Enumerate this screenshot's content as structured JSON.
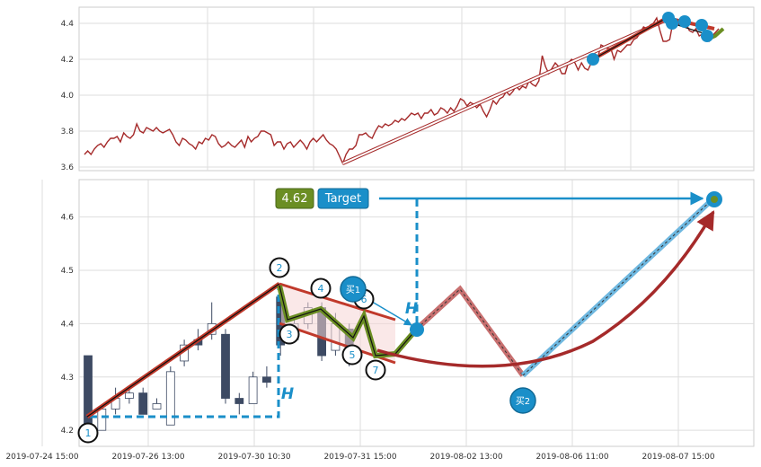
{
  "chart_data": [
    {
      "type": "line",
      "panel": "top",
      "ylim": [
        3.58,
        4.49
      ],
      "yticks": [
        "3.6",
        "3.8",
        "4.0",
        "4.2",
        "4.4"
      ],
      "grid": true,
      "series": [
        {
          "color": "#a52a2a",
          "values": [
            3.67,
            3.69,
            3.67,
            3.7,
            3.72,
            3.73,
            3.71,
            3.74,
            3.76,
            3.76,
            3.77,
            3.74,
            3.79,
            3.77,
            3.76,
            3.78,
            3.84,
            3.8,
            3.79,
            3.82,
            3.81,
            3.8,
            3.82,
            3.8,
            3.79,
            3.8,
            3.81,
            3.78,
            3.74,
            3.72,
            3.76,
            3.75,
            3.73,
            3.72,
            3.7,
            3.74,
            3.73,
            3.76,
            3.75,
            3.78,
            3.77,
            3.73,
            3.71,
            3.72,
            3.74,
            3.72,
            3.71,
            3.73,
            3.75,
            3.71,
            3.77,
            3.74,
            3.76,
            3.77,
            3.8,
            3.8,
            3.79,
            3.78,
            3.72,
            3.74,
            3.74,
            3.7,
            3.73,
            3.74,
            3.71,
            3.73,
            3.75,
            3.73,
            3.7,
            3.74,
            3.76,
            3.74,
            3.76,
            3.78,
            3.75,
            3.73,
            3.72,
            3.7,
            3.66,
            3.62,
            3.67,
            3.7,
            3.7,
            3.72,
            3.78,
            3.78,
            3.79,
            3.77,
            3.76,
            3.8,
            3.83,
            3.82,
            3.84,
            3.83,
            3.84,
            3.86,
            3.85,
            3.87,
            3.86,
            3.88,
            3.9,
            3.89,
            3.9,
            3.87,
            3.9,
            3.9,
            3.92,
            3.89,
            3.9,
            3.93,
            3.92,
            3.9,
            3.93,
            3.91,
            3.94,
            3.98,
            3.97,
            3.94,
            3.96,
            3.95,
            3.93,
            3.95,
            3.91,
            3.88,
            3.92,
            3.97,
            3.95,
            3.98,
            3.99,
            4.02,
            4.0,
            4.02,
            4.05,
            4.03,
            4.05,
            4.04,
            4.08,
            4.06,
            4.05,
            4.08,
            4.22,
            4.16,
            4.12,
            4.15,
            4.18,
            4.16,
            4.12,
            4.12,
            4.18,
            4.2,
            4.18,
            4.14,
            4.18,
            4.15,
            4.14,
            4.18,
            4.23,
            4.21,
            4.28,
            4.27,
            4.26,
            4.26,
            4.2,
            4.25,
            4.24,
            4.26,
            4.28,
            4.28,
            4.31,
            4.32,
            4.35,
            4.38,
            4.37,
            4.39,
            4.4,
            4.43,
            4.36,
            4.3,
            4.3,
            4.31,
            4.41,
            4.42,
            4.39,
            4.41,
            4.4,
            4.36,
            4.35,
            4.37,
            4.33,
            4.34,
            4.32,
            4.3,
            4.33,
            4.35,
            4.37
          ]
        }
      ]
    },
    {
      "type": "candlestick",
      "panel": "bottom",
      "ylim": [
        4.17,
        4.67
      ],
      "yticks": [
        "4.2",
        "4.3",
        "4.4",
        "4.5",
        "4.6"
      ],
      "grid": true,
      "categories": [
        "2019-07-24 15:00",
        "2019-07-26 13:00",
        "2019-07-30 10:30",
        "2019-07-31 15:00",
        "2019-08-02 13:00",
        "2019-08-06 11:00",
        "2019-08-07 15:00"
      ],
      "candles": [
        {
          "o": 4.34,
          "c": 4.2,
          "h": 4.34,
          "l": 4.2
        },
        {
          "o": 4.2,
          "c": 4.24,
          "h": 4.24,
          "l": 4.2
        },
        {
          "o": 4.24,
          "c": 4.26,
          "h": 4.28,
          "l": 4.23
        },
        {
          "o": 4.26,
          "c": 4.27,
          "h": 4.28,
          "l": 4.25
        },
        {
          "o": 4.27,
          "c": 4.23,
          "h": 4.28,
          "l": 4.23
        },
        {
          "o": 4.24,
          "c": 4.25,
          "h": 4.26,
          "l": 4.24
        },
        {
          "o": 4.21,
          "c": 4.31,
          "h": 4.32,
          "l": 4.21
        },
        {
          "o": 4.33,
          "c": 4.36,
          "h": 4.37,
          "l": 4.32
        },
        {
          "o": 4.37,
          "c": 4.36,
          "h": 4.39,
          "l": 4.35
        },
        {
          "o": 4.38,
          "c": 4.4,
          "h": 4.44,
          "l": 4.37
        },
        {
          "o": 4.38,
          "c": 4.26,
          "h": 4.39,
          "l": 4.25
        },
        {
          "o": 4.26,
          "c": 4.25,
          "h": 4.27,
          "l": 4.23
        },
        {
          "o": 4.25,
          "c": 4.3,
          "h": 4.31,
          "l": 4.25
        },
        {
          "o": 4.3,
          "c": 4.29,
          "h": 4.32,
          "l": 4.28
        },
        {
          "o": 4.45,
          "c": 4.36,
          "h": 4.46,
          "l": 4.34
        },
        {
          "o": 4.37,
          "c": 4.4,
          "h": 4.41,
          "l": 4.37
        },
        {
          "o": 4.4,
          "c": 4.43,
          "h": 4.44,
          "l": 4.39
        },
        {
          "o": 4.43,
          "c": 4.34,
          "h": 4.44,
          "l": 4.33
        },
        {
          "o": 4.35,
          "c": 4.4,
          "h": 4.42,
          "l": 4.34
        },
        {
          "o": 4.39,
          "c": 4.33,
          "h": 4.4,
          "l": 4.32
        }
      ],
      "points": [
        {
          "label": "1",
          "x": 0,
          "y": 4.2
        },
        {
          "label": "2",
          "x": 12.8,
          "y": 4.45
        },
        {
          "label": "3",
          "x": 13.4,
          "y": 4.38
        },
        {
          "label": "4",
          "x": 16.4,
          "y": 4.41
        },
        {
          "label": "5",
          "x": 18.0,
          "y": 4.35
        },
        {
          "label": "6",
          "x": 18.7,
          "y": 4.39
        },
        {
          "label": "7",
          "x": 19.3,
          "y": 4.32
        }
      ],
      "buy_points": [
        {
          "label": "买1",
          "x": 24.5,
          "y": 4.37
        },
        {
          "label": "买2",
          "x": 31.4,
          "y": 4.28
        }
      ],
      "projection": [
        [
          24.5,
          4.37
        ],
        [
          27.0,
          4.445
        ],
        [
          31.4,
          4.28
        ],
        [
          45.7,
          4.62
        ]
      ],
      "target_value": "4.62",
      "target_label": "Target",
      "height_label": "H",
      "colors": {
        "up_candle": "#ffffff",
        "down_candle": "#3d4a63",
        "trend": "#c0392b",
        "wave": "#6b8e23",
        "accent": "#1a8fc9",
        "arc": "#a52a2a"
      }
    }
  ]
}
